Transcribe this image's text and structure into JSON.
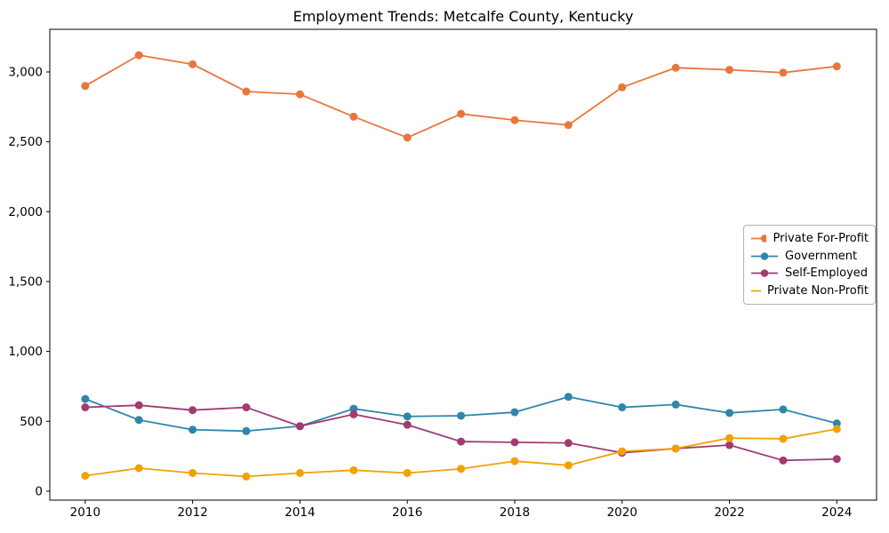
{
  "title": "Employment Trends: Metcalfe County, Kentucky",
  "chart_data": {
    "type": "line",
    "title": "Employment Trends: Metcalfe County, Kentucky",
    "xlabel": "",
    "ylabel": "",
    "grid": false,
    "background": "#ffffff",
    "axis_color": "#000000",
    "legend_position": "center-right",
    "x": [
      2010,
      2011,
      2012,
      2013,
      2014,
      2015,
      2016,
      2017,
      2018,
      2019,
      2020,
      2021,
      2022,
      2023,
      2024
    ],
    "series": [
      {
        "name": "Private For-Profit",
        "color": "#E8773D",
        "values": [
          2900,
          3120,
          3055,
          2860,
          2840,
          2680,
          2530,
          2700,
          2655,
          2620,
          2890,
          3030,
          3015,
          2995,
          3040
        ]
      },
      {
        "name": "Government",
        "color": "#2E86AB",
        "values": [
          660,
          510,
          440,
          430,
          465,
          590,
          535,
          540,
          565,
          675,
          600,
          620,
          560,
          585,
          485
        ]
      },
      {
        "name": "Self-Employed",
        "color": "#A23B72",
        "values": [
          600,
          615,
          580,
          600,
          465,
          550,
          475,
          355,
          350,
          345,
          275,
          305,
          330,
          220,
          230
        ]
      },
      {
        "name": "Private Non-Profit",
        "color": "#F2A104",
        "values": [
          110,
          165,
          130,
          105,
          130,
          150,
          130,
          160,
          215,
          185,
          285,
          305,
          380,
          375,
          445
        ]
      }
    ],
    "xticks": [
      2010,
      2012,
      2014,
      2016,
      2018,
      2020,
      2022,
      2024
    ],
    "yticks": [
      0,
      500,
      1000,
      1500,
      2000,
      2500,
      3000
    ],
    "ytick_labels": [
      "0",
      "500",
      "1,000",
      "1,500",
      "2,000",
      "2,500",
      "3,000"
    ],
    "xlim": [
      2009.34,
      2024.74
    ],
    "ylim": [
      -64,
      3305
    ]
  }
}
